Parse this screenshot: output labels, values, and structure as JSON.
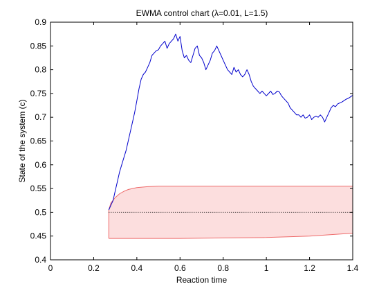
{
  "chart_data": {
    "type": "line",
    "title": "EWMA control chart (λ=0.01, L=1.5)",
    "xlabel": "Reaction time",
    "ylabel": "State of the system (c)",
    "xlim": [
      0,
      1.4
    ],
    "ylim": [
      0.4,
      0.9
    ],
    "xticks": [
      0,
      0.2,
      0.4,
      0.6,
      0.8,
      1,
      1.2,
      1.4
    ],
    "yticks": [
      0.4,
      0.45,
      0.5,
      0.55,
      0.6,
      0.65,
      0.7,
      0.75,
      0.8,
      0.85,
      0.9
    ],
    "grid": false,
    "legend": "none",
    "colors": {
      "ewma": "#0000cc",
      "band_fill": "#fcdede",
      "band_edge": "#ee6a6a",
      "center": "#000000"
    },
    "center_line": 0.5,
    "control_band": {
      "x": [
        0.27,
        0.28,
        0.3,
        0.32,
        0.34,
        0.36,
        0.4,
        0.45,
        0.5,
        0.6,
        0.8,
        1.0,
        1.2,
        1.4
      ],
      "upper": [
        0.505,
        0.52,
        0.531,
        0.539,
        0.544,
        0.548,
        0.552,
        0.554,
        0.555,
        0.555,
        0.555,
        0.555,
        0.555,
        0.555
      ],
      "lower": [
        0.445,
        0.445,
        0.445,
        0.445,
        0.445,
        0.445,
        0.445,
        0.445,
        0.445,
        0.445,
        0.446,
        0.447,
        0.45,
        0.456
      ]
    },
    "series": [
      {
        "x": [
          0.27,
          0.28,
          0.29,
          0.3,
          0.31,
          0.32,
          0.33,
          0.34,
          0.35,
          0.36,
          0.37,
          0.38,
          0.39,
          0.4,
          0.41,
          0.42,
          0.43,
          0.44,
          0.45,
          0.46,
          0.47,
          0.48,
          0.49,
          0.5,
          0.51,
          0.52,
          0.53,
          0.54,
          0.55,
          0.56,
          0.57,
          0.58,
          0.59,
          0.6,
          0.61,
          0.62,
          0.63,
          0.64,
          0.65,
          0.66,
          0.67,
          0.68,
          0.69,
          0.7,
          0.71,
          0.72,
          0.73,
          0.74,
          0.75,
          0.76,
          0.77,
          0.78,
          0.79,
          0.8,
          0.81,
          0.82,
          0.83,
          0.84,
          0.85,
          0.86,
          0.87,
          0.88,
          0.89,
          0.9,
          0.91,
          0.92,
          0.93,
          0.94,
          0.95,
          0.96,
          0.97,
          0.98,
          0.99,
          1.0,
          1.01,
          1.02,
          1.03,
          1.04,
          1.05,
          1.06,
          1.07,
          1.08,
          1.09,
          1.1,
          1.11,
          1.12,
          1.13,
          1.14,
          1.15,
          1.16,
          1.17,
          1.18,
          1.19,
          1.2,
          1.21,
          1.22,
          1.23,
          1.24,
          1.25,
          1.26,
          1.27,
          1.28,
          1.29,
          1.3,
          1.31,
          1.32,
          1.33,
          1.34,
          1.35,
          1.36,
          1.37,
          1.38,
          1.39,
          1.4
        ],
        "y": [
          0.505,
          0.515,
          0.525,
          0.545,
          0.565,
          0.585,
          0.6,
          0.615,
          0.63,
          0.65,
          0.67,
          0.69,
          0.71,
          0.735,
          0.76,
          0.78,
          0.79,
          0.795,
          0.805,
          0.815,
          0.83,
          0.835,
          0.84,
          0.842,
          0.85,
          0.855,
          0.86,
          0.845,
          0.855,
          0.86,
          0.865,
          0.875,
          0.86,
          0.87,
          0.84,
          0.825,
          0.83,
          0.82,
          0.815,
          0.83,
          0.845,
          0.85,
          0.83,
          0.825,
          0.815,
          0.8,
          0.81,
          0.82,
          0.835,
          0.84,
          0.85,
          0.84,
          0.83,
          0.82,
          0.81,
          0.8,
          0.795,
          0.79,
          0.805,
          0.795,
          0.8,
          0.79,
          0.785,
          0.79,
          0.8,
          0.79,
          0.775,
          0.765,
          0.76,
          0.755,
          0.75,
          0.755,
          0.75,
          0.745,
          0.75,
          0.755,
          0.748,
          0.75,
          0.755,
          0.753,
          0.745,
          0.74,
          0.735,
          0.73,
          0.72,
          0.715,
          0.71,
          0.705,
          0.705,
          0.7,
          0.705,
          0.698,
          0.7,
          0.705,
          0.695,
          0.7,
          0.702,
          0.7,
          0.705,
          0.7,
          0.69,
          0.7,
          0.71,
          0.72,
          0.725,
          0.722,
          0.728,
          0.73,
          0.732,
          0.735,
          0.738,
          0.74,
          0.743,
          0.746
        ]
      }
    ]
  }
}
